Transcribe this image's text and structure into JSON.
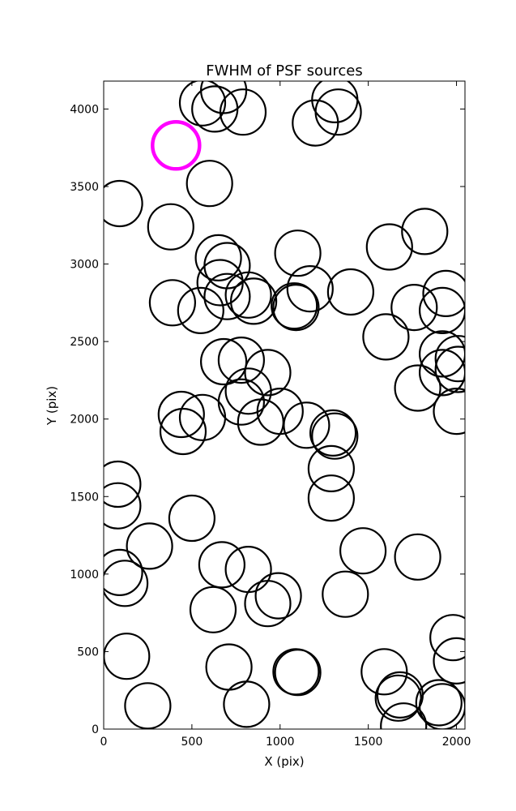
{
  "chart_data": {
    "type": "scatter",
    "title": "FWHM of PSF sources",
    "xlabel": "X (pix)",
    "ylabel": "Y (pix)",
    "xlim": [
      0,
      2048
    ],
    "ylim": [
      0,
      4180
    ],
    "xticks": [
      0,
      500,
      1000,
      1500,
      2000
    ],
    "yticks": [
      0,
      500,
      1000,
      1500,
      2000,
      2500,
      3000,
      3500,
      4000
    ],
    "grid": false,
    "legend": "none",
    "marker": "open-circle",
    "marker_color": "#000000",
    "highlight_color": "#ff00ff",
    "highlight": {
      "x": 410,
      "y": 3765
    },
    "points": [
      {
        "x": 560,
        "y": 4040
      },
      {
        "x": 680,
        "y": 4120
      },
      {
        "x": 630,
        "y": 4000
      },
      {
        "x": 790,
        "y": 3980
      },
      {
        "x": 1310,
        "y": 4060
      },
      {
        "x": 1330,
        "y": 3980
      },
      {
        "x": 1200,
        "y": 3910
      },
      {
        "x": 600,
        "y": 3520
      },
      {
        "x": 90,
        "y": 3390
      },
      {
        "x": 380,
        "y": 3240
      },
      {
        "x": 650,
        "y": 3040
      },
      {
        "x": 700,
        "y": 2990
      },
      {
        "x": 1100,
        "y": 3070
      },
      {
        "x": 1620,
        "y": 3110
      },
      {
        "x": 1820,
        "y": 3210
      },
      {
        "x": 390,
        "y": 2750
      },
      {
        "x": 550,
        "y": 2700
      },
      {
        "x": 660,
        "y": 2880
      },
      {
        "x": 700,
        "y": 2790
      },
      {
        "x": 820,
        "y": 2800
      },
      {
        "x": 850,
        "y": 2760
      },
      {
        "x": 1080,
        "y": 2730
      },
      {
        "x": 1090,
        "y": 2720
      },
      {
        "x": 1170,
        "y": 2840
      },
      {
        "x": 1400,
        "y": 2820
      },
      {
        "x": 1760,
        "y": 2720
      },
      {
        "x": 1940,
        "y": 2810
      },
      {
        "x": 1920,
        "y": 2700
      },
      {
        "x": 1600,
        "y": 2530
      },
      {
        "x": 680,
        "y": 2370
      },
      {
        "x": 780,
        "y": 2380
      },
      {
        "x": 930,
        "y": 2300
      },
      {
        "x": 820,
        "y": 2180
      },
      {
        "x": 780,
        "y": 2110
      },
      {
        "x": 890,
        "y": 1980
      },
      {
        "x": 1000,
        "y": 2050
      },
      {
        "x": 1150,
        "y": 1960
      },
      {
        "x": 1300,
        "y": 1910
      },
      {
        "x": 1310,
        "y": 1890
      },
      {
        "x": 440,
        "y": 2030
      },
      {
        "x": 450,
        "y": 1920
      },
      {
        "x": 560,
        "y": 2010
      },
      {
        "x": 1920,
        "y": 2420
      },
      {
        "x": 1920,
        "y": 2300
      },
      {
        "x": 2010,
        "y": 2390
      },
      {
        "x": 2010,
        "y": 2320
      },
      {
        "x": 1780,
        "y": 2200
      },
      {
        "x": 2000,
        "y": 2050
      },
      {
        "x": 80,
        "y": 1580
      },
      {
        "x": 80,
        "y": 1440
      },
      {
        "x": 1290,
        "y": 1680
      },
      {
        "x": 1290,
        "y": 1490
      },
      {
        "x": 500,
        "y": 1360
      },
      {
        "x": 260,
        "y": 1180
      },
      {
        "x": 90,
        "y": 1010
      },
      {
        "x": 120,
        "y": 940
      },
      {
        "x": 670,
        "y": 1060
      },
      {
        "x": 820,
        "y": 1030
      },
      {
        "x": 990,
        "y": 860
      },
      {
        "x": 930,
        "y": 810
      },
      {
        "x": 620,
        "y": 770
      },
      {
        "x": 1470,
        "y": 1150
      },
      {
        "x": 1780,
        "y": 1110
      },
      {
        "x": 1370,
        "y": 870
      },
      {
        "x": 130,
        "y": 470
      },
      {
        "x": 710,
        "y": 400
      },
      {
        "x": 1090,
        "y": 370
      },
      {
        "x": 1100,
        "y": 365
      },
      {
        "x": 1590,
        "y": 370
      },
      {
        "x": 1680,
        "y": 220
      },
      {
        "x": 1670,
        "y": 200
      },
      {
        "x": 1700,
        "y": 20
      },
      {
        "x": 250,
        "y": 150
      },
      {
        "x": 810,
        "y": 160
      },
      {
        "x": 1900,
        "y": 170
      },
      {
        "x": 1920,
        "y": 145
      },
      {
        "x": 1980,
        "y": 590
      },
      {
        "x": 2000,
        "y": 440
      }
    ]
  }
}
